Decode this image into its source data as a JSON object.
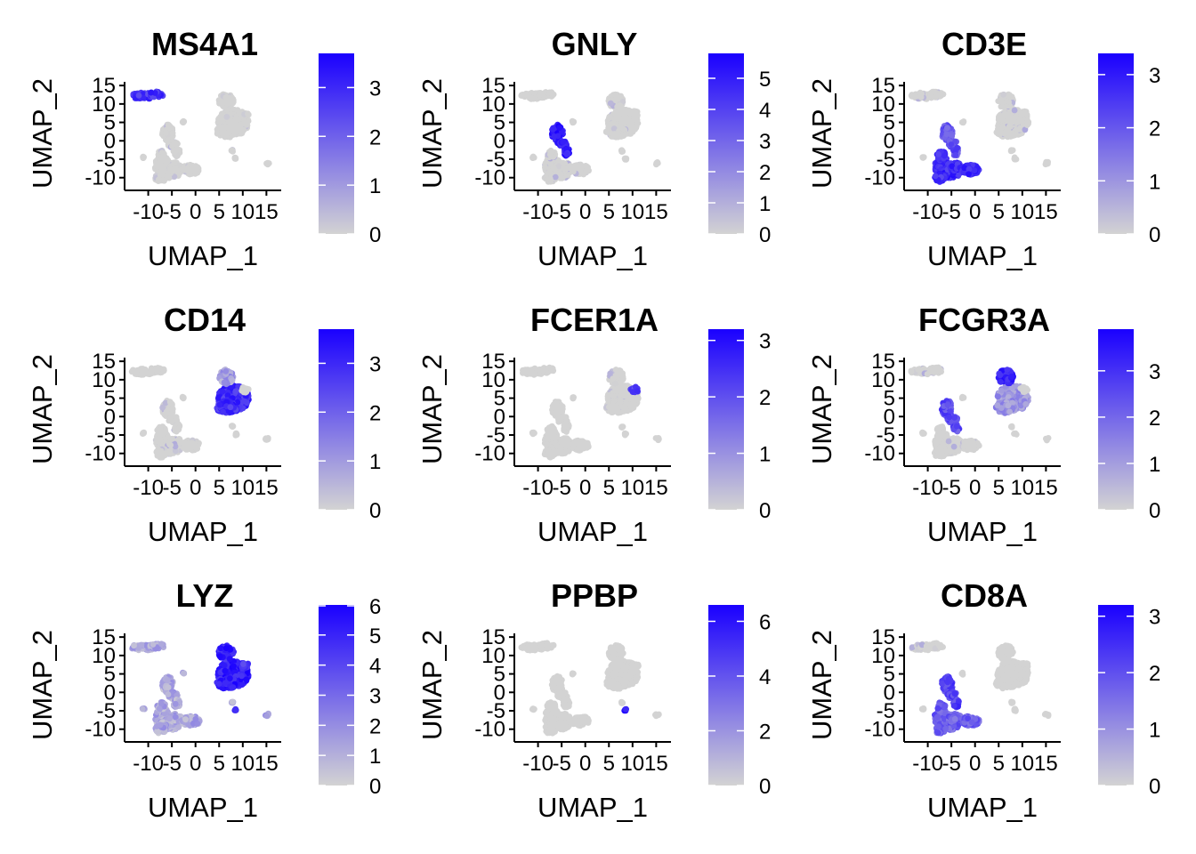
{
  "chart_data": [
    {
      "type": "scatter",
      "title": "MS4A1",
      "xlabel": "UMAP_1",
      "ylabel": "UMAP_2",
      "xticks": [
        -10,
        -5,
        0,
        5,
        10,
        15
      ],
      "xtick_labels": [
        "-10",
        "-5",
        "0",
        "5",
        "10",
        "15"
      ],
      "yticks": [
        -10,
        -5,
        0,
        5,
        10,
        15
      ],
      "ytick_labels": [
        "-10",
        "-5",
        "0",
        "5",
        "10",
        "15"
      ],
      "colorbar": {
        "min": 0,
        "max": 3.7,
        "ticks": [
          0,
          1,
          2,
          3
        ],
        "tick_labels": [
          "0",
          "1",
          "2",
          "3"
        ],
        "low_color": "#D3D3D3",
        "high_color": "#1A00FF"
      },
      "expression": {
        "bcell": 0.75,
        "nk": 0.02,
        "tcell": 0.02,
        "mono14": 0.02,
        "mono16": 0.02,
        "dc": 0.02,
        "plt": 0.02,
        "background": 0.02
      }
    },
    {
      "type": "scatter",
      "title": "GNLY",
      "xlabel": "UMAP_1",
      "ylabel": "UMAP_2",
      "xticks": [
        -10,
        -5,
        0,
        5,
        10,
        15
      ],
      "xtick_labels": [
        "-10",
        "-5",
        "0",
        "5",
        "10",
        "15"
      ],
      "yticks": [
        -10,
        -5,
        0,
        5,
        10,
        15
      ],
      "ytick_labels": [
        "-10",
        "-5",
        "0",
        "5",
        "10",
        "15"
      ],
      "colorbar": {
        "min": 0,
        "max": 5.8,
        "ticks": [
          0,
          1,
          2,
          3,
          4,
          5
        ],
        "tick_labels": [
          "0",
          "1",
          "2",
          "3",
          "4",
          "5"
        ],
        "low_color": "#D3D3D3",
        "high_color": "#1A00FF"
      },
      "expression": {
        "bcell": 0.0,
        "nk": 0.85,
        "tcell": 0.05,
        "mono14": 0.03,
        "mono16": 0.03,
        "dc": 0.0,
        "plt": 0.0,
        "background": 0.0
      }
    },
    {
      "type": "scatter",
      "title": "CD3E",
      "xlabel": "UMAP_1",
      "ylabel": "UMAP_2",
      "xticks": [
        -10,
        -5,
        0,
        5,
        10,
        15
      ],
      "xtick_labels": [
        "-10",
        "-5",
        "0",
        "5",
        "10",
        "15"
      ],
      "yticks": [
        -10,
        -5,
        0,
        5,
        10,
        15
      ],
      "ytick_labels": [
        "-10",
        "-5",
        "0",
        "5",
        "10",
        "15"
      ],
      "colorbar": {
        "min": 0,
        "max": 3.4,
        "ticks": [
          0,
          1,
          2,
          3
        ],
        "tick_labels": [
          "0",
          "1",
          "2",
          "3"
        ],
        "low_color": "#D3D3D3",
        "high_color": "#1A00FF"
      },
      "expression": {
        "bcell": 0.1,
        "nk": 0.6,
        "tcell": 0.8,
        "mono14": 0.06,
        "mono16": 0.06,
        "dc": 0.0,
        "plt": 0.0,
        "background": 0.0
      }
    },
    {
      "type": "scatter",
      "title": "CD14",
      "xlabel": "UMAP_1",
      "ylabel": "UMAP_2",
      "xticks": [
        -10,
        -5,
        0,
        5,
        10,
        15
      ],
      "xtick_labels": [
        "-10",
        "-5",
        "0",
        "5",
        "10",
        "15"
      ],
      "yticks": [
        -10,
        -5,
        0,
        5,
        10,
        15
      ],
      "ytick_labels": [
        "-10",
        "-5",
        "0",
        "5",
        "10",
        "15"
      ],
      "colorbar": {
        "min": 0,
        "max": 3.7,
        "ticks": [
          0,
          1,
          2,
          3
        ],
        "tick_labels": [
          "0",
          "1",
          "2",
          "3"
        ],
        "low_color": "#D3D3D3",
        "high_color": "#1A00FF"
      },
      "expression": {
        "bcell": 0.0,
        "nk": 0.02,
        "tcell": 0.04,
        "mono14": 0.78,
        "mono16": 0.25,
        "dc": 0.1,
        "plt": 0.0,
        "background": 0.0
      }
    },
    {
      "type": "scatter",
      "title": "FCER1A",
      "xlabel": "UMAP_1",
      "ylabel": "UMAP_2",
      "xticks": [
        -10,
        -5,
        0,
        5,
        10,
        15
      ],
      "xtick_labels": [
        "-10",
        "-5",
        "0",
        "5",
        "10",
        "15"
      ],
      "yticks": [
        -10,
        -5,
        0,
        5,
        10,
        15
      ],
      "ytick_labels": [
        "-10",
        "-5",
        "0",
        "5",
        "10",
        "15"
      ],
      "colorbar": {
        "min": 0,
        "max": 3.2,
        "ticks": [
          0,
          1,
          2,
          3
        ],
        "tick_labels": [
          "0",
          "1",
          "2",
          "3"
        ],
        "low_color": "#D3D3D3",
        "high_color": "#1A00FF"
      },
      "expression": {
        "bcell": 0.0,
        "nk": 0.0,
        "tcell": 0.0,
        "mono14": 0.02,
        "mono16": 0.02,
        "dc": 0.7,
        "plt": 0.0,
        "background": 0.0
      }
    },
    {
      "type": "scatter",
      "title": "FCGR3A",
      "xlabel": "UMAP_1",
      "ylabel": "UMAP_2",
      "xticks": [
        -10,
        -5,
        0,
        5,
        10,
        15
      ],
      "xtick_labels": [
        "-10",
        "-5",
        "0",
        "5",
        "10",
        "15"
      ],
      "yticks": [
        -10,
        -5,
        0,
        5,
        10,
        15
      ],
      "ytick_labels": [
        "-10",
        "-5",
        "0",
        "5",
        "10",
        "15"
      ],
      "colorbar": {
        "min": 0,
        "max": 3.9,
        "ticks": [
          0,
          1,
          2,
          3
        ],
        "tick_labels": [
          "0",
          "1",
          "2",
          "3"
        ],
        "low_color": "#D3D3D3",
        "high_color": "#1A00FF"
      },
      "expression": {
        "bcell": 0.05,
        "nk": 0.65,
        "tcell": 0.03,
        "mono14": 0.3,
        "mono16": 0.85,
        "dc": 0.0,
        "plt": 0.0,
        "background": 0.0
      }
    },
    {
      "type": "scatter",
      "title": "LYZ",
      "xlabel": "UMAP_1",
      "ylabel": "UMAP_2",
      "xticks": [
        -10,
        -5,
        0,
        5,
        10,
        15
      ],
      "xtick_labels": [
        "-10",
        "-5",
        "0",
        "5",
        "10",
        "15"
      ],
      "yticks": [
        -10,
        -5,
        0,
        5,
        10,
        15
      ],
      "ytick_labels": [
        "-10",
        "-5",
        "0",
        "5",
        "10",
        "15"
      ],
      "colorbar": {
        "min": 0,
        "max": 6.0,
        "ticks": [
          0,
          1,
          2,
          3,
          4,
          5,
          6
        ],
        "tick_labels": [
          "0",
          "1",
          "2",
          "3",
          "4",
          "5",
          "6"
        ],
        "low_color": "#D3D3D3",
        "high_color": "#1A00FF"
      },
      "expression": {
        "bcell": 0.2,
        "nk": 0.2,
        "tcell": 0.2,
        "mono14": 0.88,
        "mono16": 0.85,
        "dc": 0.7,
        "plt": 0.75,
        "background": 0.2
      }
    },
    {
      "type": "scatter",
      "title": "PPBP",
      "xlabel": "UMAP_1",
      "ylabel": "UMAP_2",
      "xticks": [
        -10,
        -5,
        0,
        5,
        10,
        15
      ],
      "xtick_labels": [
        "-10",
        "-5",
        "0",
        "5",
        "10",
        "15"
      ],
      "yticks": [
        -10,
        -5,
        0,
        5,
        10,
        15
      ],
      "ytick_labels": [
        "-10",
        "-5",
        "0",
        "5",
        "10",
        "15"
      ],
      "colorbar": {
        "min": 0,
        "max": 6.6,
        "ticks": [
          0,
          2,
          4,
          6
        ],
        "tick_labels": [
          "0",
          "2",
          "4",
          "6"
        ],
        "low_color": "#D3D3D3",
        "high_color": "#1A00FF"
      },
      "expression": {
        "bcell": 0.0,
        "nk": 0.0,
        "tcell": 0.0,
        "mono14": 0.0,
        "mono16": 0.0,
        "dc": 0.0,
        "plt": 0.95,
        "background": 0.0
      }
    },
    {
      "type": "scatter",
      "title": "CD8A",
      "xlabel": "UMAP_1",
      "ylabel": "UMAP_2",
      "xticks": [
        -10,
        -5,
        0,
        5,
        10,
        15
      ],
      "xtick_labels": [
        "-10",
        "-5",
        "0",
        "5",
        "10",
        "15"
      ],
      "yticks": [
        -10,
        -5,
        0,
        5,
        10,
        15
      ],
      "ytick_labels": [
        "-10",
        "-5",
        "0",
        "5",
        "10",
        "15"
      ],
      "colorbar": {
        "min": 0,
        "max": 3.2,
        "ticks": [
          0,
          1,
          2,
          3
        ],
        "tick_labels": [
          "0",
          "1",
          "2",
          "3"
        ],
        "low_color": "#D3D3D3",
        "high_color": "#1A00FF"
      },
      "expression": {
        "bcell": 0.05,
        "nk": 0.7,
        "tcell": 0.55,
        "mono14": 0.0,
        "mono16": 0.0,
        "dc": 0.0,
        "plt": 0.0,
        "background": 0.0
      }
    }
  ]
}
